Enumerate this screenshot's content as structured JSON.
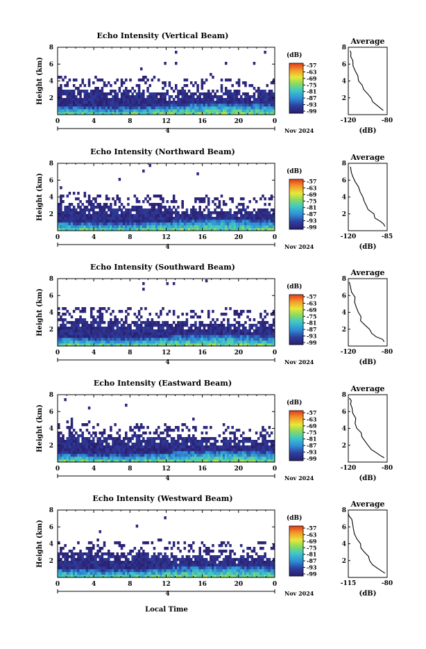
{
  "figure": {
    "xlabel": "Local Time",
    "date_label": "Nov 2024",
    "day_marker": "4",
    "colorbar_unit": "(dB)",
    "colorbar_ticks": [
      "-57",
      "-63",
      "-69",
      "-75",
      "-81",
      "-87",
      "-93",
      "-99"
    ],
    "profile_title": "Average",
    "profile_xlabel": "(dB)"
  },
  "chart_data": [
    {
      "type": "heatmap",
      "beam": "Vertical",
      "title": "Echo Intensity (Vertical Beam)",
      "ylabel": "Height (km)",
      "xlim": [
        0,
        24
      ],
      "ylim": [
        0,
        8
      ],
      "xticks": [
        "0",
        "4",
        "8",
        "12",
        "16",
        "20",
        "0"
      ],
      "yticks": [
        "2",
        "4",
        "6",
        "8"
      ],
      "clim_dB": [
        -99,
        -57
      ],
      "top_echo_km": [
        3.1,
        3.1,
        3.0,
        3.2,
        3.1,
        2.8,
        2.7,
        3.0,
        2.9,
        3.1,
        2.8,
        2.9,
        2.6,
        3.0,
        2.9,
        2.7,
        2.8,
        2.6,
        3.0,
        2.8,
        2.7,
        2.5,
        3.2,
        2.8,
        3.1
      ]
    },
    {
      "type": "line",
      "title": "Average",
      "xlabel": "(dB)",
      "ylabel": "",
      "xlim": [
        -120,
        -80
      ],
      "ylim": [
        0,
        8
      ],
      "xticks": [
        "-120",
        "-80"
      ],
      "yticks": [
        "2",
        "4",
        "6",
        "8"
      ],
      "x": [
        -84,
        -87,
        -91,
        -95,
        -98,
        -101,
        -104,
        -107,
        -109,
        -111,
        -113,
        -115,
        -116,
        -117,
        -118,
        -118
      ],
      "y": [
        0.5,
        0.8,
        1.1,
        1.5,
        2.0,
        2.5,
        3.0,
        3.5,
        4.0,
        4.6,
        5.2,
        5.8,
        6.4,
        6.9,
        7.3,
        7.6
      ]
    },
    {
      "type": "heatmap",
      "beam": "Northward",
      "title": "Echo Intensity (Northward Beam)",
      "ylabel": "Height (km)",
      "xlim": [
        0,
        24
      ],
      "ylim": [
        0,
        8
      ],
      "xticks": [
        "0",
        "4",
        "8",
        "12",
        "16",
        "20",
        "0"
      ],
      "yticks": [
        "2",
        "4",
        "6",
        "8"
      ],
      "clim_dB": [
        -99,
        -57
      ],
      "top_echo_km": [
        3.0,
        3.1,
        3.3,
        3.0,
        3.2,
        3.0,
        2.8,
        2.9,
        3.1,
        2.9,
        2.8,
        3.0,
        2.7,
        2.6,
        2.9,
        2.8,
        2.7,
        2.5,
        2.8,
        2.6,
        2.7,
        2.6,
        2.9,
        2.7,
        2.6
      ]
    },
    {
      "type": "line",
      "title": "Average",
      "xlabel": "(dB)",
      "ylabel": "",
      "xlim": [
        -120,
        -85
      ],
      "ylim": [
        0,
        8
      ],
      "xticks": [
        "-120",
        "-85"
      ],
      "yticks": [
        "2",
        "4",
        "6",
        "8"
      ],
      "x": [
        -87,
        -89,
        -92,
        -95,
        -98,
        -101,
        -103,
        -106,
        -108,
        -110,
        -112,
        -114,
        -115,
        -116,
        -117,
        -118
      ],
      "y": [
        0.5,
        0.8,
        1.1,
        1.5,
        2.0,
        2.5,
        3.0,
        3.5,
        4.0,
        4.6,
        5.2,
        5.8,
        6.4,
        6.9,
        7.3,
        7.6
      ]
    },
    {
      "type": "heatmap",
      "beam": "Southward",
      "title": "Echo Intensity (Southward Beam)",
      "ylabel": "Height (km)",
      "xlim": [
        0,
        24
      ],
      "ylim": [
        0,
        8
      ],
      "xticks": [
        "0",
        "4",
        "8",
        "12",
        "16",
        "20",
        "0"
      ],
      "yticks": [
        "2",
        "4",
        "6",
        "8"
      ],
      "clim_dB": [
        -99,
        -57
      ],
      "top_echo_km": [
        3.3,
        3.2,
        3.4,
        3.1,
        3.3,
        3.2,
        3.0,
        3.1,
        3.0,
        3.2,
        3.0,
        3.1,
        2.9,
        3.0,
        2.8,
        3.0,
        2.9,
        2.8,
        3.1,
        2.9,
        2.8,
        2.7,
        3.0,
        2.9,
        2.8
      ]
    },
    {
      "type": "line",
      "title": "Average",
      "xlabel": "(dB)",
      "ylabel": "",
      "xlim": [
        -120,
        -80
      ],
      "ylim": [
        0,
        8
      ],
      "xticks": [
        "-120",
        "-80"
      ],
      "yticks": [
        "2",
        "4",
        "6",
        "8"
      ],
      "x": [
        -83,
        -86,
        -90,
        -95,
        -99,
        -103,
        -106,
        -108,
        -110,
        -111,
        -113,
        -114,
        -116,
        -117,
        -118,
        -119
      ],
      "y": [
        0.5,
        0.8,
        1.1,
        1.5,
        2.0,
        2.5,
        3.0,
        3.5,
        4.0,
        4.6,
        5.2,
        5.8,
        6.4,
        6.9,
        7.3,
        7.6
      ]
    },
    {
      "type": "heatmap",
      "beam": "Eastward",
      "title": "Echo Intensity (Eastward Beam)",
      "ylabel": "Height (km)",
      "xlim": [
        0,
        24
      ],
      "ylim": [
        0,
        8
      ],
      "xticks": [
        "0",
        "4",
        "8",
        "12",
        "16",
        "20",
        "0"
      ],
      "yticks": [
        "2",
        "4",
        "6",
        "8"
      ],
      "clim_dB": [
        -99,
        -57
      ],
      "top_echo_km": [
        3.2,
        3.4,
        3.3,
        3.5,
        3.3,
        3.1,
        3.2,
        3.0,
        3.3,
        3.1,
        3.0,
        3.2,
        2.9,
        3.1,
        3.0,
        2.8,
        3.0,
        2.9,
        3.1,
        2.8,
        3.0,
        2.8,
        3.1,
        2.9,
        3.0
      ]
    },
    {
      "type": "line",
      "title": "Average",
      "xlabel": "(dB)",
      "ylabel": "",
      "xlim": [
        -120,
        -80
      ],
      "ylim": [
        0,
        8
      ],
      "xticks": [
        "-120",
        "-80"
      ],
      "yticks": [
        "2",
        "4",
        "6",
        "8"
      ],
      "x": [
        -83,
        -87,
        -91,
        -96,
        -100,
        -103,
        -106,
        -108,
        -110,
        -112,
        -113,
        -115,
        -116,
        -117,
        -118,
        -119
      ],
      "y": [
        0.5,
        0.8,
        1.1,
        1.5,
        2.0,
        2.5,
        3.0,
        3.5,
        4.0,
        4.6,
        5.2,
        5.8,
        6.4,
        6.9,
        7.3,
        7.6
      ]
    },
    {
      "type": "heatmap",
      "beam": "Westward",
      "title": "Echo Intensity (Westward Beam)",
      "ylabel": "Height (km)",
      "xlim": [
        0,
        24
      ],
      "ylim": [
        0,
        8
      ],
      "xticks": [
        "0",
        "4",
        "8",
        "12",
        "16",
        "20",
        "0"
      ],
      "yticks": [
        "2",
        "4",
        "6",
        "8"
      ],
      "clim_dB": [
        -99,
        -57
      ],
      "top_echo_km": [
        3.0,
        3.1,
        3.0,
        3.2,
        3.1,
        3.0,
        2.9,
        3.0,
        3.2,
        3.0,
        2.8,
        3.1,
        2.9,
        2.7,
        2.9,
        2.8,
        2.6,
        2.7,
        2.9,
        2.6,
        2.7,
        2.5,
        2.8,
        2.6,
        2.7
      ]
    },
    {
      "type": "line",
      "title": "Average",
      "xlabel": "(dB)",
      "ylabel": "",
      "xlim": [
        -115,
        -80
      ],
      "ylim": [
        0,
        8
      ],
      "xticks": [
        "-115",
        "-80"
      ],
      "yticks": [
        "2",
        "4",
        "6",
        "8"
      ],
      "x": [
        -82,
        -85,
        -88,
        -92,
        -95,
        -98,
        -101,
        -103,
        -105,
        -107,
        -109,
        -111,
        -112,
        -113,
        -114,
        -115
      ],
      "y": [
        0.5,
        0.8,
        1.1,
        1.5,
        2.0,
        2.5,
        3.0,
        3.5,
        4.0,
        4.6,
        5.2,
        5.8,
        6.4,
        6.9,
        7.3,
        7.6
      ]
    }
  ]
}
